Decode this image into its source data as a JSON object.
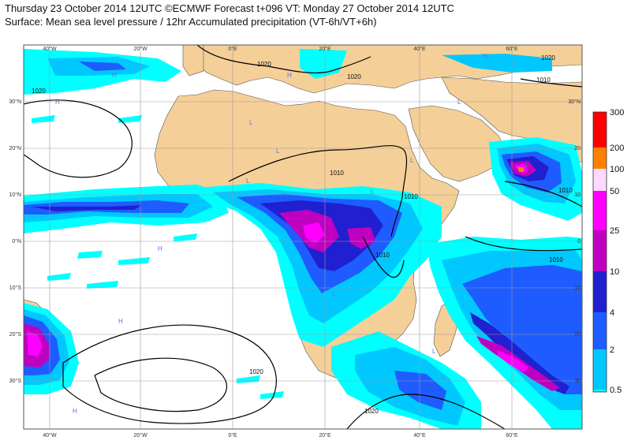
{
  "header": {
    "title": "Thursday 23 October 2014 12UTC ©ECMWF Forecast t+096 VT: Monday 27 October 2014 12UTC",
    "subtitle": "Surface: Mean sea level pressure / 12hr Accumulated precipitation (VT-6h/VT+6h)"
  },
  "map": {
    "lon_labels": [
      "40°W",
      "20°W",
      "0°E",
      "20°E",
      "40°E",
      "60°E"
    ],
    "lat_labels": [
      "30°N",
      "20°N",
      "10°N",
      "0°N",
      "10°S",
      "20°S",
      "30°S"
    ],
    "right_lat_labels": [
      "30°N",
      "20",
      "10",
      "0",
      "10",
      "20",
      "30"
    ],
    "isobar_labels": [
      "1020",
      "1020",
      "1020",
      "1010",
      "1010",
      "1010",
      "1010",
      "1020",
      "1010",
      "1020",
      "1010",
      "1020"
    ],
    "pressure_centres": [
      "H",
      "H",
      "L",
      "L",
      "L",
      "L",
      "L",
      "L",
      "H",
      "H",
      "H",
      "L",
      "L",
      "L",
      "H",
      "H"
    ],
    "colors": {
      "land": "#f5cf98",
      "sea": "#ffffff",
      "grid": "#9a9a9a",
      "isobar": "#000000"
    }
  },
  "legend": {
    "levels": [
      "300",
      "200",
      "100",
      "50",
      "25",
      "10",
      "4",
      "2",
      "0.5"
    ],
    "colors": [
      "#ff0000",
      "#ff8000",
      "#ffd9ff",
      "#ff00ff",
      "#c000c0",
      "#2020d0",
      "#1e5cff",
      "#00c8ff",
      "#00ffff"
    ]
  }
}
